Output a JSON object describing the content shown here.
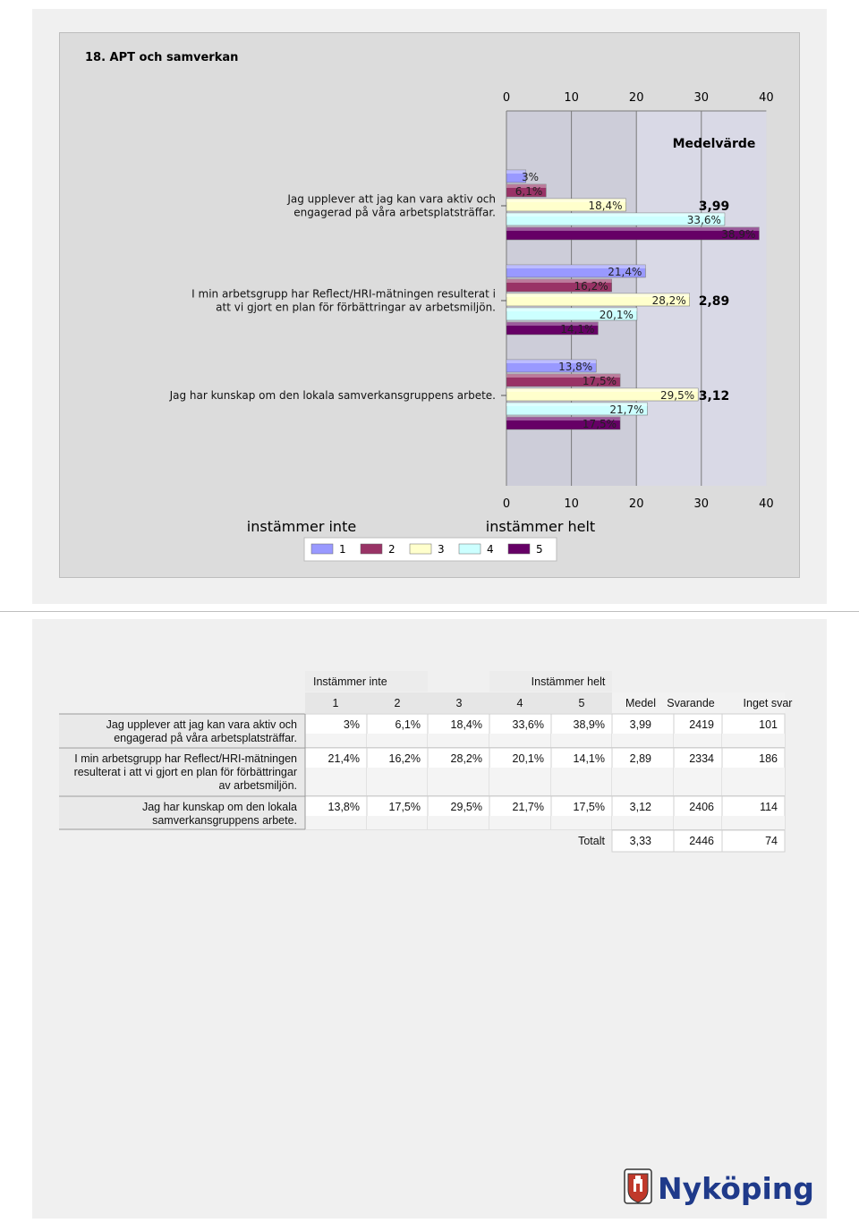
{
  "chart_data": {
    "type": "bar",
    "orientation": "horizontal",
    "title": "18. APT och samverkan",
    "xlim": [
      0,
      40
    ],
    "xticks": [
      0,
      10,
      20,
      30,
      40
    ],
    "mean_header": "Medelvärde",
    "scale_low_label": "instämmer inte",
    "scale_high_label": "instämmer helt",
    "legend_position": "bottom-center",
    "series": [
      {
        "name": "1",
        "color": "#9999ff"
      },
      {
        "name": "2",
        "color": "#993366"
      },
      {
        "name": "3",
        "color": "#ffffcc"
      },
      {
        "name": "4",
        "color": "#ccffff"
      },
      {
        "name": "5",
        "color": "#660066"
      }
    ],
    "categories": [
      {
        "label_lines": [
          "Jag upplever att jag kan vara aktiv och",
          "engagerad på våra arbetsplatsträffar."
        ],
        "values": [
          3,
          6.1,
          18.4,
          33.6,
          38.9
        ],
        "value_labels": [
          "3%",
          "6,1%",
          "18,4%",
          "33,6%",
          "38,9%"
        ],
        "mean": "3,99"
      },
      {
        "label_lines": [
          "I min arbetsgrupp har Reflect/HRI-mätningen resulterat i",
          "att vi gjort en plan för förbättringar av arbetsmiljön."
        ],
        "values": [
          21.4,
          16.2,
          28.2,
          20.1,
          14.1
        ],
        "value_labels": [
          "21,4%",
          "16,2%",
          "28,2%",
          "20,1%",
          "14,1%"
        ],
        "mean": "2,89"
      },
      {
        "label_lines": [
          "Jag har kunskap om den lokala samverkansgruppens arbete."
        ],
        "values": [
          13.8,
          17.5,
          29.5,
          21.7,
          17.5
        ],
        "value_labels": [
          "13,8%",
          "17,5%",
          "29,5%",
          "21,7%",
          "17,5%"
        ],
        "mean": "3,12"
      }
    ]
  },
  "table": {
    "group_low": "Instämmer inte",
    "group_high": "Instämmer helt",
    "headers": [
      "1",
      "2",
      "3",
      "4",
      "5",
      "Medel",
      "Svarande",
      "Inget svar"
    ],
    "rows": [
      {
        "label_lines": [
          "Jag upplever att jag kan vara aktiv och",
          "engagerad på våra arbetsplatsträffar."
        ],
        "cells": [
          "3%",
          "6,1%",
          "18,4%",
          "33,6%",
          "38,9%",
          "3,99",
          "2419",
          "101"
        ]
      },
      {
        "label_lines": [
          "I min arbetsgrupp har Reflect/HRI-mätningen",
          "resulterat i att vi gjort en plan för förbättringar",
          "av arbetsmiljön."
        ],
        "cells": [
          "21,4%",
          "16,2%",
          "28,2%",
          "20,1%",
          "14,1%",
          "2,89",
          "2334",
          "186"
        ]
      },
      {
        "label_lines": [
          "Jag har kunskap om den lokala",
          "samverkansgruppens arbete."
        ],
        "cells": [
          "13,8%",
          "17,5%",
          "29,5%",
          "21,7%",
          "17,5%",
          "3,12",
          "2406",
          "114"
        ]
      }
    ],
    "total_label": "Totalt",
    "total_cells": [
      "3,33",
      "2446",
      "74"
    ]
  },
  "logo": {
    "text": "Nyköping",
    "icon": "municipal-crest-icon",
    "color": "#1f3a8a"
  }
}
